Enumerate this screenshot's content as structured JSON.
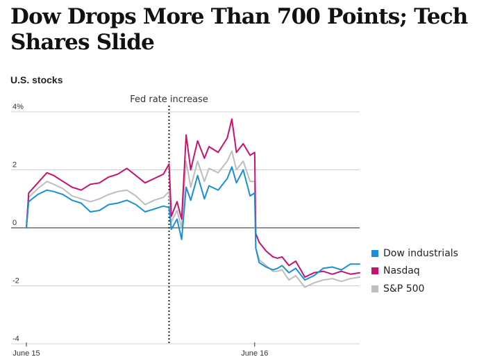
{
  "headline": "Dow Drops More Than 700 Points; Tech Shares Slide",
  "chart_data": {
    "type": "line",
    "title": "U.S. stocks",
    "xlabel": "",
    "ylabel": "",
    "ylim": [
      -4,
      4
    ],
    "y_ticks": [
      {
        "value": 4,
        "label": "4%"
      },
      {
        "value": 2,
        "label": "2"
      },
      {
        "value": 0,
        "label": "0"
      },
      {
        "value": -2,
        "label": "-2"
      },
      {
        "value": -4,
        "label": "-4"
      }
    ],
    "x_ticks": [
      {
        "value": 0,
        "label": "June 15"
      },
      {
        "value": 1,
        "label": "June 16"
      }
    ],
    "annotation": {
      "x": 0.625,
      "label": "Fed rate increase"
    },
    "legend_position": "right",
    "x": [
      0,
      0.01,
      0.05,
      0.09,
      0.12,
      0.16,
      0.2,
      0.24,
      0.28,
      0.32,
      0.36,
      0.4,
      0.44,
      0.48,
      0.52,
      0.56,
      0.6,
      0.625,
      0.635,
      0.66,
      0.68,
      0.7,
      0.72,
      0.75,
      0.78,
      0.8,
      0.84,
      0.88,
      0.9,
      0.92,
      0.95,
      0.98,
      1.0,
      1.005,
      1.02,
      1.05,
      1.08,
      1.1,
      1.12,
      1.15,
      1.18,
      1.22,
      1.26,
      1.3,
      1.34,
      1.38,
      1.42,
      1.46
    ],
    "series": [
      {
        "name": "Dow industrials",
        "color": "#1a8fd8",
        "values": [
          0.0,
          0.9,
          1.15,
          1.3,
          1.25,
          1.15,
          0.95,
          0.85,
          0.55,
          0.6,
          0.8,
          0.85,
          0.95,
          0.8,
          0.55,
          0.65,
          0.75,
          0.7,
          -0.05,
          0.3,
          -0.4,
          1.4,
          0.95,
          1.8,
          1.0,
          1.45,
          1.3,
          1.7,
          2.1,
          1.55,
          2.0,
          1.1,
          1.2,
          -0.7,
          -1.2,
          -1.35,
          -1.45,
          -1.4,
          -1.3,
          -1.55,
          -1.4,
          -1.8,
          -1.65,
          -1.4,
          -1.35,
          -1.45,
          -1.25,
          -1.25
        ]
      },
      {
        "name": "Nasdaq",
        "color": "#c8106e",
        "values": [
          0.0,
          1.2,
          1.55,
          1.9,
          1.8,
          1.6,
          1.4,
          1.3,
          1.5,
          1.55,
          1.75,
          1.85,
          2.05,
          1.8,
          1.55,
          1.7,
          1.85,
          2.2,
          0.4,
          0.9,
          0.3,
          3.2,
          2.0,
          3.0,
          2.4,
          2.8,
          2.6,
          3.1,
          3.75,
          2.6,
          2.9,
          2.5,
          2.6,
          -0.2,
          -0.5,
          -0.8,
          -1.0,
          -1.05,
          -1.0,
          -1.3,
          -1.15,
          -1.7,
          -1.55,
          -1.5,
          -1.6,
          -1.5,
          -1.6,
          -1.55
        ]
      },
      {
        "name": "S&P 500",
        "color": "#bdbdbd",
        "values": [
          0.0,
          1.05,
          1.35,
          1.6,
          1.5,
          1.35,
          1.1,
          1.0,
          0.9,
          1.0,
          1.15,
          1.25,
          1.3,
          1.1,
          0.8,
          0.95,
          1.05,
          1.25,
          0.2,
          0.6,
          0.0,
          2.3,
          1.4,
          2.3,
          1.6,
          2.05,
          1.9,
          2.3,
          2.65,
          2.0,
          2.3,
          1.6,
          1.6,
          -0.7,
          -1.1,
          -1.3,
          -1.5,
          -1.5,
          -1.45,
          -1.8,
          -1.65,
          -2.05,
          -1.9,
          -1.8,
          -1.75,
          -1.85,
          -1.75,
          -1.7
        ]
      }
    ]
  }
}
